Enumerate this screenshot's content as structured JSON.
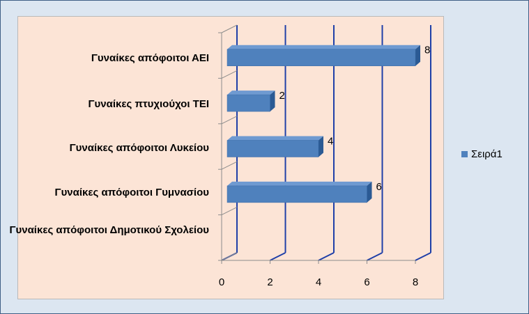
{
  "chart_data": {
    "type": "bar",
    "orientation": "horizontal",
    "categories": [
      "Γυναίκες απόφοιτοι ΑΕΙ",
      "Γυναίκες πτυχιούχοι ΤΕΙ",
      "Γυναίκες απόφοιτοι Λυκείου",
      "Γυναίκες απόφοιτοι Γυμνασίου",
      "Γυναίκες απόφοιτοι Δημοτικού Σχολείου"
    ],
    "series": [
      {
        "name": "Σειρά1",
        "values": [
          8,
          2,
          4,
          6,
          0
        ],
        "color": "#4f81bd"
      }
    ],
    "data_labels": [
      "8",
      "2",
      "4",
      "6",
      ""
    ],
    "xlim": [
      0,
      8
    ],
    "xticks": [
      "0",
      "2",
      "4",
      "6",
      "8"
    ],
    "grid": true,
    "legend_position": "right",
    "style": "3d"
  }
}
